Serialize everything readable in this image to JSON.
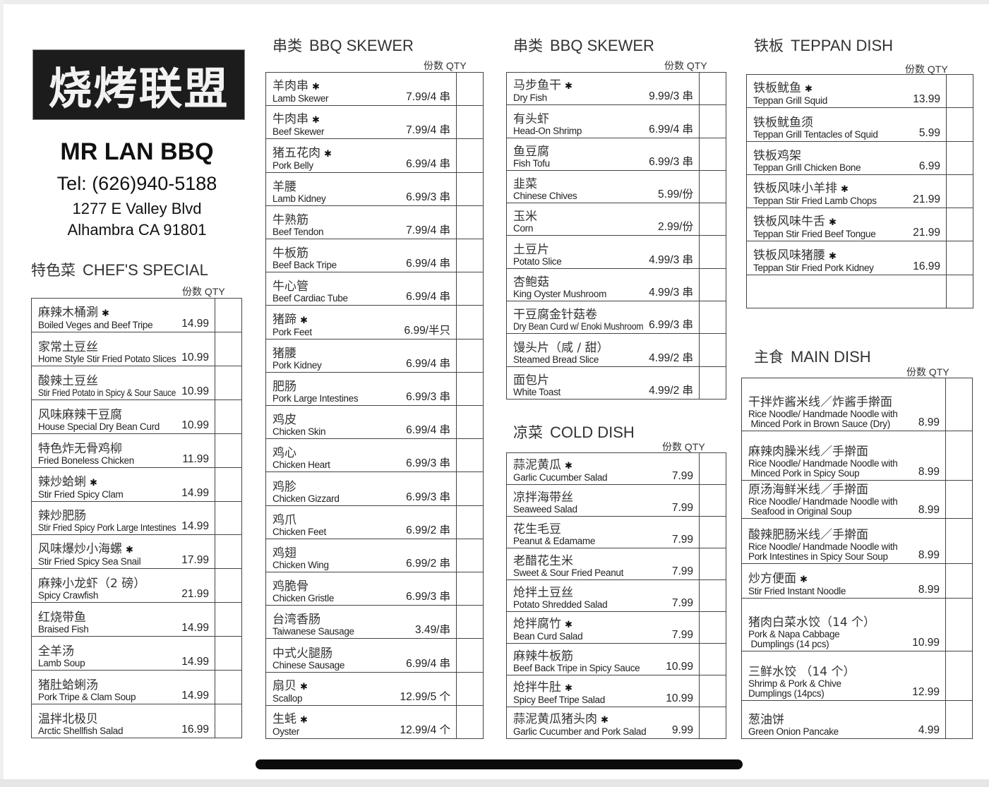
{
  "header": {
    "logo_text": "烧烤联盟",
    "brand": "MR LAN BBQ",
    "tel": "Tel: (626)940-5188",
    "address_line1": "1277 E Valley Blvd",
    "address_line2": "Alhambra CA 91801"
  },
  "qty_label": "份数 QTY",
  "sections": {
    "chef": {
      "title_cn": "特色菜",
      "title_en": "CHEF'S SPECIAL",
      "items": [
        {
          "cn": "麻辣木桶涮",
          "star": true,
          "en": "Boiled Veges and Beef Tripe",
          "price": "14.99"
        },
        {
          "cn": "家常土豆丝",
          "en": "Home Style Stir Fried Potato Slices",
          "price": "10.99"
        },
        {
          "cn": "酸辣土豆丝",
          "en": "Stir Fried Potato in Spicy & Sour Sauce",
          "price": "10.99"
        },
        {
          "cn": "风味麻辣干豆腐",
          "en": "House Special Dry Bean Curd",
          "price": "10.99"
        },
        {
          "cn": "特色炸无骨鸡柳",
          "en": "Fried Boneless Chicken",
          "price": "11.99"
        },
        {
          "cn": "辣炒蛤蜊",
          "star": true,
          "en": "Stir Fried Spicy Clam",
          "price": "14.99"
        },
        {
          "cn": "辣炒肥肠",
          "en": "Stir Fried Spicy Pork Large Intestines",
          "price": "14.99"
        },
        {
          "cn": "风味爆炒小海螺",
          "star": true,
          "en": "Stir Fried Spicy Sea Snail",
          "price": "17.99"
        },
        {
          "cn": "麻辣小龙虾（2 磅）",
          "en": "Spicy Crawfish",
          "price": "21.99"
        },
        {
          "cn": "红烧带鱼",
          "en": "Braised Fish",
          "price": "14.99"
        },
        {
          "cn": "全羊汤",
          "en": "Lamb Soup",
          "price": "14.99"
        },
        {
          "cn": "猪肚蛤蜊汤",
          "en": "Pork Tripe & Clam Soup",
          "price": "14.99"
        },
        {
          "cn": "温拌北极贝",
          "en": "Arctic Shellfish Salad",
          "price": "16.99"
        }
      ]
    },
    "bbq1": {
      "title_cn": "串类",
      "title_en": "BBQ SKEWER",
      "items": [
        {
          "cn": "羊肉串",
          "star": true,
          "en": "Lamb Skewer",
          "price": "7.99/4 串"
        },
        {
          "cn": "牛肉串",
          "star": true,
          "en": "Beef Skewer",
          "price": "7.99/4 串"
        },
        {
          "cn": "猪五花肉",
          "star": true,
          "en": "Pork Belly",
          "price": "6.99/4 串"
        },
        {
          "cn": "羊腰",
          "en": "Lamb Kidney",
          "price": "6.99/3 串"
        },
        {
          "cn": "牛熟筋",
          "en": "Beef Tendon",
          "price": "7.99/4 串"
        },
        {
          "cn": "牛板筋",
          "en": "Beef Back Tripe",
          "price": "6.99/4 串"
        },
        {
          "cn": "牛心管",
          "en": "Beef Cardiac Tube",
          "price": "6.99/4 串"
        },
        {
          "cn": "猪蹄",
          "star": true,
          "en": "Pork Feet",
          "price": "6.99/半只"
        },
        {
          "cn": "猪腰",
          "en": "Pork Kidney",
          "price": "6.99/4 串"
        },
        {
          "cn": "肥肠",
          "en": "Pork Large Intestines",
          "price": "6.99/3 串"
        },
        {
          "cn": "鸡皮",
          "en": "Chicken Skin",
          "price": "6.99/4 串"
        },
        {
          "cn": "鸡心",
          "en": "Chicken Heart",
          "price": "6.99/3 串"
        },
        {
          "cn": "鸡胗",
          "en": "Chicken Gizzard",
          "price": "6.99/3 串"
        },
        {
          "cn": "鸡爪",
          "en": "Chicken Feet",
          "price": "6.99/2 串"
        },
        {
          "cn": "鸡翅",
          "en": "Chicken Wing",
          "price": "6.99/2 串"
        },
        {
          "cn": "鸡脆骨",
          "en": "Chicken Gristle",
          "price": "6.99/3 串"
        },
        {
          "cn": "台湾香肠",
          "en": "Taiwanese Sausage",
          "price": "3.49/串"
        },
        {
          "cn": "中式火腿肠",
          "en": "Chinese Sausage",
          "price": "6.99/4 串"
        },
        {
          "cn": "扇贝",
          "star": true,
          "en": "Scallop",
          "price": "12.99/5 个"
        },
        {
          "cn": "生蚝",
          "star": true,
          "en": "Oyster",
          "price": "12.99/4 个"
        }
      ]
    },
    "bbq2": {
      "title_cn": "串类",
      "title_en": "BBQ SKEWER",
      "items": [
        {
          "cn": "马步鱼干",
          "star": true,
          "en": "Dry Fish",
          "price": "9.99/3 串"
        },
        {
          "cn": "有头虾",
          "en": "Head-On Shrimp",
          "price": "6.99/4 串"
        },
        {
          "cn": "鱼豆腐",
          "en": "Fish Tofu",
          "price": "6.99/3 串"
        },
        {
          "cn": "韭菜",
          "en": "Chinese Chives",
          "price": "5.99/份"
        },
        {
          "cn": "玉米",
          "en": "Corn",
          "price": "2.99/份"
        },
        {
          "cn": "土豆片",
          "en": "Potato Slice",
          "price": "4.99/3 串"
        },
        {
          "cn": "杏鲍菇",
          "en": "King Oyster Mushroom",
          "price": "4.99/3 串"
        },
        {
          "cn": "干豆腐金针菇卷",
          "en": "Dry Bean Curd w/ Enoki Mushroom",
          "price": "6.99/3 串"
        },
        {
          "cn": "馒头片（咸 / 甜）",
          "en": "Steamed Bread Slice",
          "price": "4.99/2 串"
        },
        {
          "cn": "面包片",
          "en": "White Toast",
          "price": "4.99/2 串"
        }
      ]
    },
    "cold": {
      "title_cn": "凉菜",
      "title_en": "COLD DISH",
      "items": [
        {
          "cn": "蒜泥黄瓜",
          "star": true,
          "en": "Garlic Cucumber Salad",
          "price": "7.99"
        },
        {
          "cn": "凉拌海带丝",
          "en": "Seaweed Salad",
          "price": "7.99"
        },
        {
          "cn": "花生毛豆",
          "en": "Peanut & Edamame",
          "price": "7.99"
        },
        {
          "cn": "老醋花生米",
          "en": "Sweet & Sour Fried Peanut",
          "price": "7.99"
        },
        {
          "cn": "炝拌土豆丝",
          "en": "Potato Shredded Salad",
          "price": "7.99"
        },
        {
          "cn": "炝拌腐竹",
          "star": true,
          "en": "Bean Curd Salad",
          "price": "7.99"
        },
        {
          "cn": "麻辣牛板筋",
          "en": "Beef Back Tripe in Spicy Sauce",
          "price": "10.99"
        },
        {
          "cn": "炝拌牛肚",
          "star": true,
          "en": "Spicy Beef Tripe Salad",
          "price": "10.99"
        },
        {
          "cn": "蒜泥黄瓜猪头肉",
          "star": true,
          "en": "Garlic Cucumber and Pork Salad",
          "price": "9.99"
        }
      ]
    },
    "teppan": {
      "title_cn": "铁板",
      "title_en": "TEPPAN DISH",
      "items": [
        {
          "cn": "铁板鱿鱼",
          "star": true,
          "en": "Teppan Grill Squid",
          "price": "13.99"
        },
        {
          "cn": "铁板鱿鱼须",
          "en": "Teppan Grill Tentacles of Squid",
          "price": "5.99"
        },
        {
          "cn": "铁板鸡架",
          "en": "Teppan Grill Chicken Bone",
          "price": "6.99"
        },
        {
          "cn": "铁板风味小羊排",
          "star": true,
          "en": "Teppan Stir Fried Lamb Chops",
          "price": "21.99"
        },
        {
          "cn": "铁板风味牛舌",
          "star": true,
          "en": "Teppan Stir Fried Beef Tongue",
          "price": "21.99"
        },
        {
          "cn": "铁板风味猪腰",
          "star": true,
          "en": "Teppan Stir Fried Pork Kidney",
          "price": "16.99"
        },
        {
          "cn": "",
          "en": "",
          "price": ""
        }
      ]
    },
    "main": {
      "title_cn": "主食",
      "title_en": "MAIN DISH",
      "items": [
        {
          "cn": "干拌炸酱米线／炸酱手擀面",
          "en": "Rice Noodle/ Handmade Noodle with\n Minced Pork in Brown Sauce (Dry)",
          "price": "8.99"
        },
        {
          "cn": "麻辣肉臊米线／手擀面",
          "en": "Rice Noodle/ Handmade Noodle with\n Minced Pork in Spicy Soup",
          "price": "8.99"
        },
        {
          "cn": "原汤海鲜米线／手擀面",
          "en": "Rice Noodle/ Handmade Noodle with\n Seafood in Original Soup",
          "price": "8.99"
        },
        {
          "cn": "酸辣肥肠米线／手擀面",
          "en": "Rice Noodle/ Handmade Noodle with\nPork Intestines in Spicy Sour Soup",
          "price": "8.99"
        },
        {
          "cn": "炒方便面",
          "star": true,
          "en": "Stir Fried Instant Noodle",
          "price": "8.99"
        },
        {
          "cn": "猪肉白菜水饺（14 个）",
          "en": "Pork & Napa Cabbage\n Dumplings (14 pcs)",
          "price": "10.99"
        },
        {
          "cn": "三鲜水饺 （14 个）",
          "en": "Shrimp & Pork & Chive\nDumplings (14pcs)",
          "price": "12.99"
        },
        {
          "cn": "葱油饼",
          "en": "Green Onion Pancake",
          "price": "4.99"
        }
      ]
    }
  }
}
